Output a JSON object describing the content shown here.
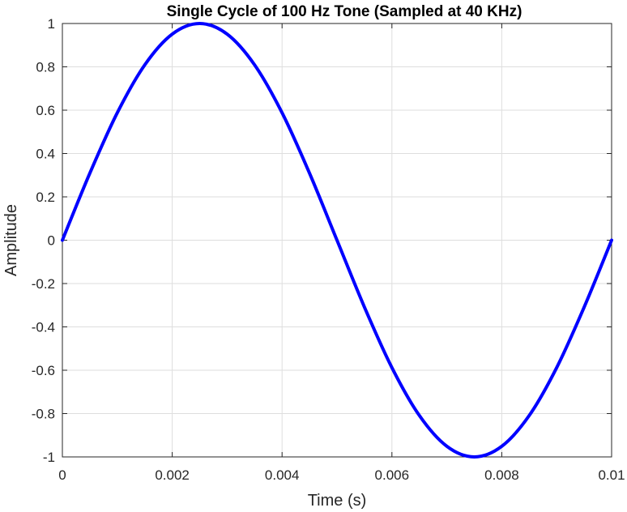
{
  "chart_data": {
    "type": "line",
    "title": "Single Cycle of 100 Hz Tone (Sampled at 40 KHz)",
    "xlabel": "Time (s)",
    "ylabel": "Amplitude",
    "xlim": [
      0,
      0.01
    ],
    "ylim": [
      -1,
      1
    ],
    "x_ticks": [
      0,
      0.002,
      0.004,
      0.006,
      0.008,
      0.01
    ],
    "x_tick_labels": [
      "0",
      "0.002",
      "0.004",
      "0.006",
      "0.008",
      "0.01"
    ],
    "y_ticks": [
      -1,
      -0.8,
      -0.6,
      -0.4,
      -0.2,
      0,
      0.2,
      0.4,
      0.6,
      0.8,
      1
    ],
    "y_tick_labels": [
      "-1",
      "-0.8",
      "-0.6",
      "-0.4",
      "-0.2",
      "0",
      "0.2",
      "0.4",
      "0.6",
      "0.8",
      "1"
    ],
    "grid": true,
    "series": [
      {
        "x": [
          0,
          0.0005,
          0.001,
          0.0015,
          0.002,
          0.0025,
          0.003,
          0.0035,
          0.004,
          0.0045,
          0.005,
          0.0055,
          0.006,
          0.0065,
          0.007,
          0.0075,
          0.008,
          0.0085,
          0.009,
          0.0095,
          0.01
        ],
        "values": [
          0,
          0.309,
          0.588,
          0.809,
          0.951,
          1,
          0.951,
          0.809,
          0.588,
          0.309,
          0,
          -0.309,
          -0.588,
          -0.809,
          -0.951,
          -1,
          -0.951,
          -0.809,
          -0.588,
          -0.309,
          0
        ],
        "color": "#0000ff"
      }
    ],
    "colors": {
      "line": "#0000ff",
      "grid": "#dedede",
      "axis": "#262626",
      "background": "#ffffff"
    }
  }
}
